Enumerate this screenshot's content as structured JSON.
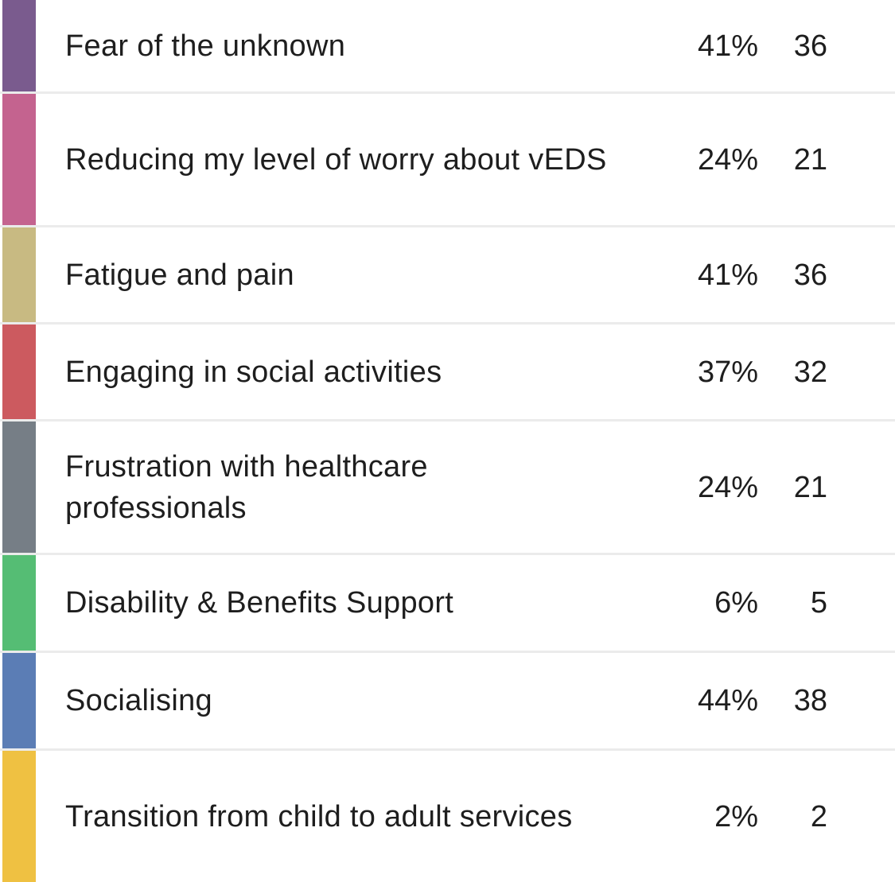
{
  "colors": {
    "row_1": "#7a5b8e",
    "row_2": "#c4638f",
    "row_3": "#c8ba82",
    "row_4": "#cc5a5f",
    "row_5": "#767e86",
    "row_6": "#55bd74",
    "row_7": "#5b7db5",
    "row_8": "#efc142"
  },
  "rows": [
    {
      "label": "Fear of the unknown",
      "percent": "41%",
      "count": "36"
    },
    {
      "label": "Reducing my level of worry about vEDS",
      "percent": "24%",
      "count": "21"
    },
    {
      "label": "Fatigue and pain",
      "percent": "41%",
      "count": "36"
    },
    {
      "label": "Engaging in social activities",
      "percent": "37%",
      "count": "32"
    },
    {
      "label": "Frustration with healthcare professionals",
      "percent": "24%",
      "count": "21"
    },
    {
      "label": "Disability & Benefits Support",
      "percent": "6%",
      "count": "5"
    },
    {
      "label": "Socialising",
      "percent": "44%",
      "count": "38"
    },
    {
      "label": "Transition from child to adult services",
      "percent": "2%",
      "count": "2"
    }
  ]
}
